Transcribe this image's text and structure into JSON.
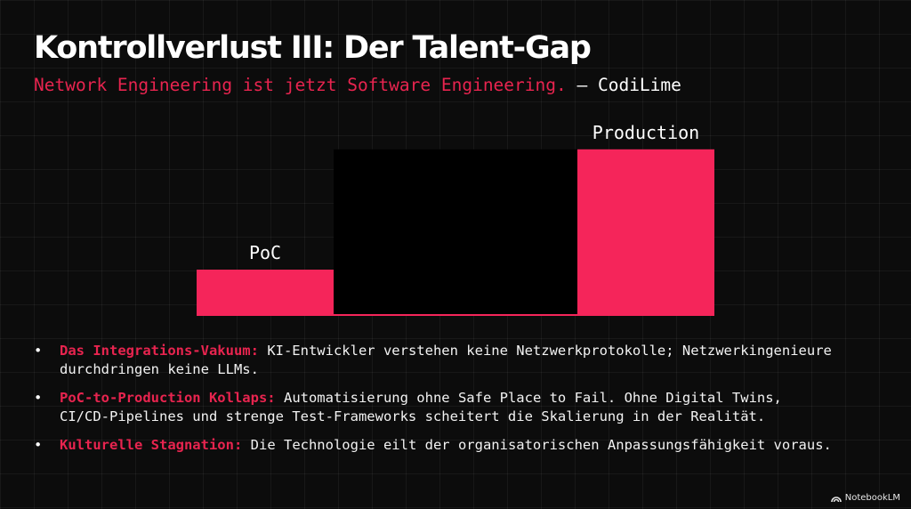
{
  "slide": {
    "title": "Kontrollverlust III: Der Talent-Gap",
    "subtitle_quote": "Network Engineering ist jetzt Software Engineering.",
    "subtitle_source": " – CodiLime"
  },
  "chart_data": {
    "type": "bar",
    "categories": [
      "PoC",
      "Production"
    ],
    "values": [
      1,
      3.6
    ],
    "colors": {
      "bar": "#f5255a",
      "gap": "#000000"
    }
  },
  "bullets": [
    {
      "term": "Das Integrations-Vakuum:",
      "lines": [
        "KI-Entwickler verstehen keine Netzwerkprotokolle; Netzwerkingenieure",
        "durchdringen keine LLMs."
      ]
    },
    {
      "term": "PoC-to-Production Kollaps:",
      "lines": [
        "Automatisierung ohne Safe Place to Fail. Ohne Digital Twins,",
        "CI/CD-Pipelines und strenge Test-Frameworks scheitert die Skalierung in der Realität."
      ]
    },
    {
      "term": "Kulturelle Stagnation:",
      "lines": [
        "Die Technologie eilt der organisatorischen Anpassungsfähigkeit voraus."
      ]
    }
  ],
  "brand": {
    "name": "NotebookLM",
    "icon": "notebooklm-logo-icon"
  },
  "colors": {
    "accent": "#e8244f",
    "background": "#0c0c0c"
  }
}
